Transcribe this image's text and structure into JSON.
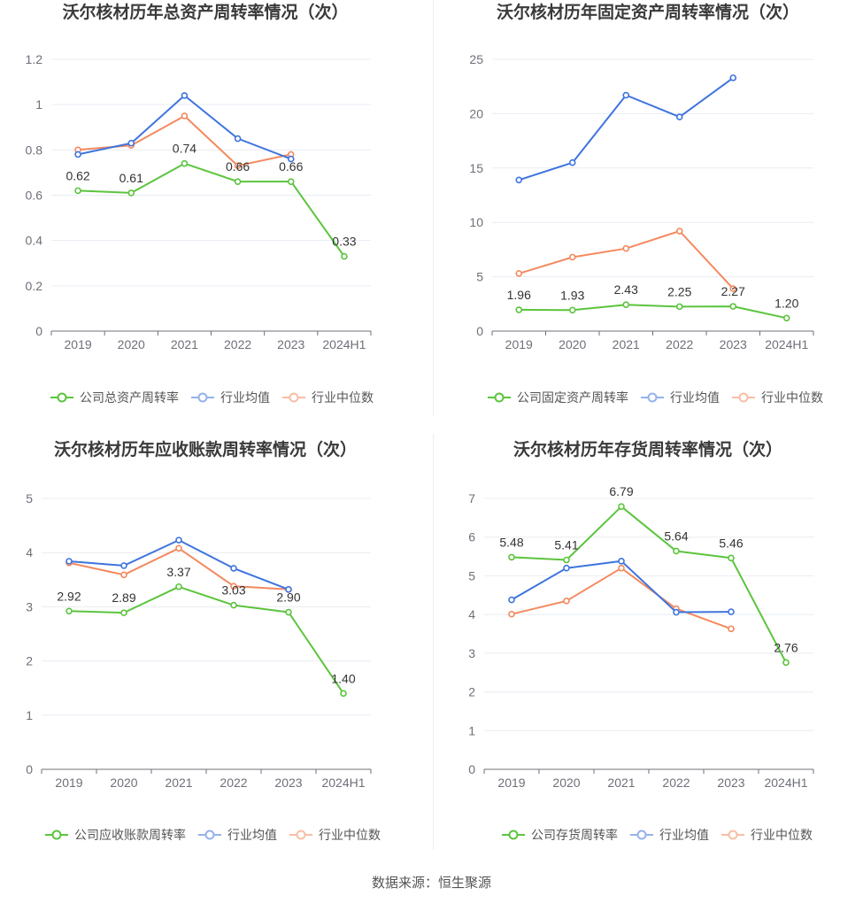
{
  "footer": {
    "source": "数据来源：恒生聚源"
  },
  "chart_data": [
    {
      "type": "line",
      "title": "沃尔核材历年总资产周转率情况（次）",
      "categories": [
        "2019",
        "2020",
        "2021",
        "2022",
        "2023",
        "2024H1"
      ],
      "ylim": [
        0,
        1.2
      ],
      "yticks": [
        0,
        0.2,
        0.4,
        0.6,
        0.8,
        1,
        1.2
      ],
      "grid": true,
      "legend": "bottom",
      "series": [
        {
          "name": "公司总资产周转率",
          "color": "#5bc43d",
          "values": [
            0.62,
            0.61,
            0.74,
            0.66,
            0.66,
            0.33
          ],
          "labels": [
            "0.62",
            "0.61",
            "0.74",
            "0.66",
            "0.66",
            "0.33"
          ]
        },
        {
          "name": "行业均值",
          "color": "#3e74de",
          "values": [
            0.78,
            0.83,
            1.04,
            0.85,
            0.76,
            null
          ]
        },
        {
          "name": "行业中位数",
          "color": "#f4895e",
          "values": [
            0.8,
            0.82,
            0.95,
            0.73,
            0.78,
            null
          ]
        }
      ]
    },
    {
      "type": "line",
      "title": "沃尔核材历年固定资产周转率情况（次）",
      "categories": [
        "2019",
        "2020",
        "2021",
        "2022",
        "2023",
        "2024H1"
      ],
      "ylim": [
        0,
        25
      ],
      "yticks": [
        0,
        5,
        10,
        15,
        20,
        25
      ],
      "grid": true,
      "legend": "bottom",
      "series": [
        {
          "name": "公司固定资产周转率",
          "color": "#5bc43d",
          "values": [
            1.96,
            1.93,
            2.43,
            2.25,
            2.27,
            1.2
          ],
          "labels": [
            "1.96",
            "1.93",
            "2.43",
            "2.25",
            "2.27",
            "1.20"
          ]
        },
        {
          "name": "行业均值",
          "color": "#3e74de",
          "values": [
            13.9,
            15.5,
            21.7,
            19.7,
            23.3,
            null
          ]
        },
        {
          "name": "行业中位数",
          "color": "#f4895e",
          "values": [
            5.3,
            6.8,
            7.6,
            9.2,
            3.9,
            null
          ]
        }
      ]
    },
    {
      "type": "line",
      "title": "沃尔核材历年应收账款周转率情况（次）",
      "categories": [
        "2019",
        "2020",
        "2021",
        "2022",
        "2023",
        "2024H1"
      ],
      "ylim": [
        0,
        5
      ],
      "yticks": [
        0,
        1,
        2,
        3,
        4,
        5
      ],
      "grid": true,
      "legend": "bottom",
      "series": [
        {
          "name": "公司应收账款周转率",
          "color": "#5bc43d",
          "values": [
            2.92,
            2.89,
            3.37,
            3.03,
            2.9,
            1.4
          ],
          "labels": [
            "2.92",
            "2.89",
            "3.37",
            "3.03",
            "2.90",
            "1.40"
          ]
        },
        {
          "name": "行业均值",
          "color": "#3e74de",
          "values": [
            3.84,
            3.76,
            4.23,
            3.71,
            3.32,
            null
          ]
        },
        {
          "name": "行业中位数",
          "color": "#f4895e",
          "values": [
            3.81,
            3.59,
            4.08,
            3.38,
            3.32,
            null
          ]
        }
      ]
    },
    {
      "type": "line",
      "title": "沃尔核材历年存货周转率情况（次）",
      "categories": [
        "2019",
        "2020",
        "2021",
        "2022",
        "2023",
        "2024H1"
      ],
      "ylim": [
        0,
        7
      ],
      "yticks": [
        0,
        1,
        2,
        3,
        4,
        5,
        6,
        7
      ],
      "grid": true,
      "legend": "bottom",
      "series": [
        {
          "name": "公司存货周转率",
          "color": "#5bc43d",
          "values": [
            5.48,
            5.41,
            6.79,
            5.64,
            5.46,
            2.76
          ],
          "labels": [
            "5.48",
            "5.41",
            "6.79",
            "5.64",
            "5.46",
            "2.76"
          ]
        },
        {
          "name": "行业均值",
          "color": "#3e74de",
          "values": [
            4.38,
            5.2,
            5.38,
            4.06,
            4.07,
            null
          ]
        },
        {
          "name": "行业中位数",
          "color": "#f4895e",
          "values": [
            4.01,
            4.35,
            5.2,
            4.15,
            3.63,
            null
          ]
        }
      ]
    }
  ]
}
